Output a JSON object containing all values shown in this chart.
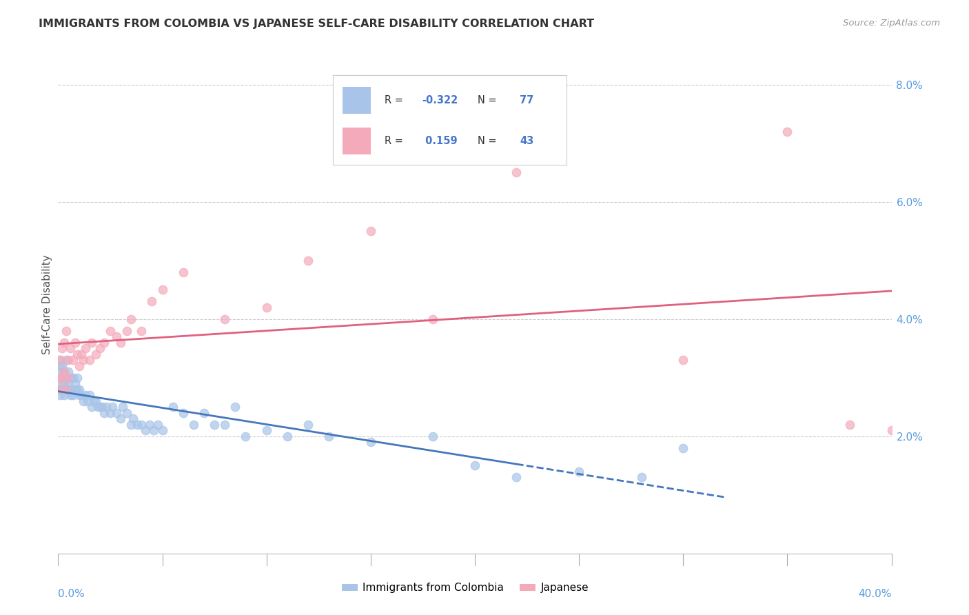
{
  "title": "IMMIGRANTS FROM COLOMBIA VS JAPANESE SELF-CARE DISABILITY CORRELATION CHART",
  "source": "Source: ZipAtlas.com",
  "ylabel": "Self-Care Disability",
  "colombia_R": -0.322,
  "colombia_N": 77,
  "japanese_R": 0.159,
  "japanese_N": 43,
  "colombia_color": "#a8c4e8",
  "japanese_color": "#f5aabb",
  "colombia_trend_color": "#4477bb",
  "japanese_trend_color": "#e06080",
  "background_color": "#ffffff",
  "grid_color": "#cccccc",
  "axis_label_color": "#5599dd",
  "title_color": "#333333",
  "source_color": "#999999",
  "legend_text_color": "#333333",
  "legend_value_color": "#4477cc",
  "xlim": [
    0.0,
    0.4
  ],
  "ylim": [
    0.0,
    0.085
  ],
  "yticks": [
    0.0,
    0.02,
    0.04,
    0.06,
    0.08
  ],
  "yticklabels": [
    "",
    "2.0%",
    "4.0%",
    "6.0%",
    "8.0%"
  ],
  "title_fontsize": 11.5,
  "label_fontsize": 11,
  "marker_size": 80,
  "colombia_x": [
    0.001,
    0.001,
    0.001,
    0.001,
    0.001,
    0.002,
    0.002,
    0.002,
    0.002,
    0.003,
    0.003,
    0.003,
    0.003,
    0.004,
    0.004,
    0.004,
    0.005,
    0.005,
    0.005,
    0.006,
    0.006,
    0.006,
    0.007,
    0.007,
    0.008,
    0.008,
    0.009,
    0.009,
    0.01,
    0.01,
    0.011,
    0.012,
    0.013,
    0.014,
    0.015,
    0.016,
    0.017,
    0.018,
    0.019,
    0.02,
    0.021,
    0.022,
    0.023,
    0.025,
    0.026,
    0.028,
    0.03,
    0.031,
    0.033,
    0.035,
    0.036,
    0.038,
    0.04,
    0.042,
    0.044,
    0.046,
    0.048,
    0.05,
    0.055,
    0.06,
    0.065,
    0.07,
    0.075,
    0.08,
    0.085,
    0.09,
    0.1,
    0.11,
    0.12,
    0.13,
    0.15,
    0.18,
    0.2,
    0.22,
    0.25,
    0.28,
    0.3
  ],
  "colombia_y": [
    0.03,
    0.028,
    0.032,
    0.027,
    0.033,
    0.031,
    0.029,
    0.028,
    0.032,
    0.03,
    0.031,
    0.027,
    0.029,
    0.03,
    0.028,
    0.033,
    0.031,
    0.028,
    0.029,
    0.03,
    0.028,
    0.027,
    0.03,
    0.027,
    0.029,
    0.028,
    0.028,
    0.03,
    0.027,
    0.028,
    0.027,
    0.026,
    0.027,
    0.026,
    0.027,
    0.025,
    0.026,
    0.026,
    0.025,
    0.025,
    0.025,
    0.024,
    0.025,
    0.024,
    0.025,
    0.024,
    0.023,
    0.025,
    0.024,
    0.022,
    0.023,
    0.022,
    0.022,
    0.021,
    0.022,
    0.021,
    0.022,
    0.021,
    0.025,
    0.024,
    0.022,
    0.024,
    0.022,
    0.022,
    0.025,
    0.02,
    0.021,
    0.02,
    0.022,
    0.02,
    0.019,
    0.02,
    0.015,
    0.013,
    0.014,
    0.013,
    0.018
  ],
  "japanese_x": [
    0.001,
    0.001,
    0.001,
    0.002,
    0.002,
    0.003,
    0.003,
    0.004,
    0.004,
    0.005,
    0.005,
    0.006,
    0.007,
    0.008,
    0.009,
    0.01,
    0.011,
    0.012,
    0.013,
    0.015,
    0.016,
    0.018,
    0.02,
    0.022,
    0.025,
    0.028,
    0.03,
    0.033,
    0.035,
    0.04,
    0.045,
    0.05,
    0.06,
    0.08,
    0.1,
    0.12,
    0.15,
    0.18,
    0.22,
    0.3,
    0.35,
    0.38,
    0.4
  ],
  "japanese_y": [
    0.033,
    0.03,
    0.028,
    0.035,
    0.03,
    0.036,
    0.031,
    0.038,
    0.028,
    0.033,
    0.03,
    0.035,
    0.033,
    0.036,
    0.034,
    0.032,
    0.034,
    0.033,
    0.035,
    0.033,
    0.036,
    0.034,
    0.035,
    0.036,
    0.038,
    0.037,
    0.036,
    0.038,
    0.04,
    0.038,
    0.043,
    0.045,
    0.048,
    0.04,
    0.042,
    0.05,
    0.055,
    0.04,
    0.065,
    0.033,
    0.072,
    0.022,
    0.021
  ]
}
